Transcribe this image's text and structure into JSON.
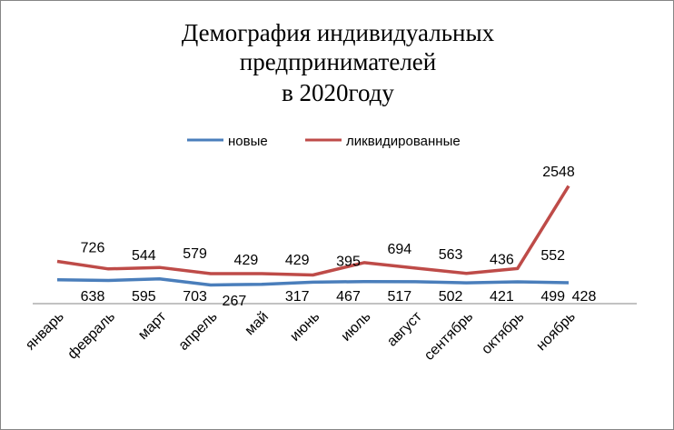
{
  "chart_data": {
    "type": "line",
    "title_lines": [
      "Демография индивидуальных",
      "предпринимателей",
      "в  2020году"
    ],
    "categories": [
      "январь",
      "февраль",
      "март",
      "апрель",
      "май",
      "июнь",
      "июль",
      "август",
      "сентябрь",
      "октябрь",
      "ноябрь"
    ],
    "series": [
      {
        "name": "новые",
        "color": "#4a7ebb",
        "values": [
          638,
          595,
          703,
          267,
          317,
          467,
          517,
          502,
          421,
          499,
          428
        ]
      },
      {
        "name": "ликвидированные",
        "color": "#be4b48",
        "values": [
          726,
          544,
          579,
          429,
          429,
          395,
          694,
          563,
          436,
          552,
          2548
        ]
      }
    ],
    "xlabel": "",
    "ylabel": "",
    "legend_position": "top",
    "grid": false
  }
}
